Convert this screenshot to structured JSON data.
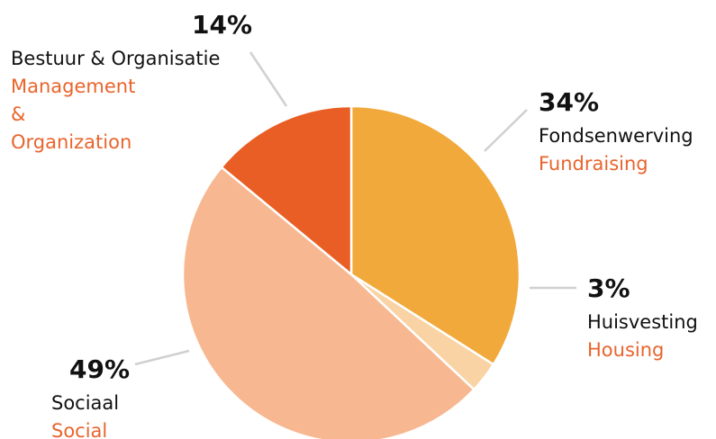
{
  "chart_data": {
    "type": "pie",
    "categories": [
      "Fondsenwerving",
      "Huisvesting",
      "Sociaal",
      "Bestuur & Organisatie"
    ],
    "translations": [
      "Fundraising",
      "Housing",
      "Social",
      "Management & Organization"
    ],
    "values": [
      34,
      3,
      49,
      14
    ],
    "value_labels": [
      "34%",
      "3%",
      "49%",
      "14%"
    ],
    "colors": [
      "#f2a93b",
      "#f9d3a4",
      "#f7b891",
      "#e95e24"
    ],
    "translation_color": "#e8642c"
  }
}
